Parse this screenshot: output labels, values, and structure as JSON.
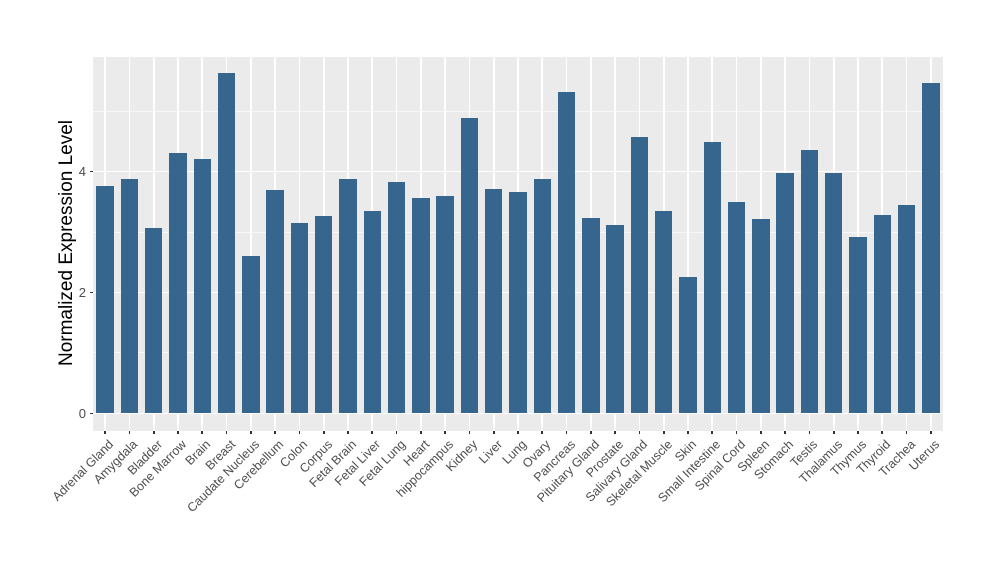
{
  "chart_data": {
    "type": "bar",
    "title": "",
    "xlabel": "",
    "ylabel": "Normalized Expression Level",
    "legend_position": "none",
    "grid": "on",
    "panel_background": "#EBEBEB",
    "gridline_color": "#FFFFFF",
    "bar_color": "#36658D",
    "tick_color": "#333333",
    "tick_label_color": "#4D4D4D",
    "ylim": [
      -0.29,
      5.91
    ],
    "yticks_major": [
      0,
      2,
      4
    ],
    "yticks_minor": [
      1,
      3,
      5
    ],
    "categories": [
      "Adrenal Gland",
      "Amygdala",
      "Bladder",
      "Bone Marrow",
      "Brain",
      "Breast",
      "Caudate Nucleus",
      "Cerebellum",
      "Colon",
      "Corpus",
      "Fetal Brain",
      "Fetal Liver",
      "Fetal Lung",
      "Heart",
      "hippocampus",
      "Kidney",
      "Liver",
      "Lung",
      "Ovary",
      "Pancreas",
      "Pituitary Gland",
      "Prostate",
      "Salivary Gland",
      "Skeletal Muscle",
      "Skin",
      "Small Intestine",
      "Spinal Cord",
      "Spleen",
      "Stomach",
      "Testis",
      "Thalamus",
      "Thymus",
      "Thyroid",
      "Trachea",
      "Uterus"
    ],
    "values": [
      3.77,
      3.87,
      3.07,
      4.31,
      4.21,
      5.63,
      2.61,
      3.69,
      3.15,
      3.26,
      3.88,
      3.35,
      3.82,
      3.57,
      3.6,
      4.88,
      3.71,
      3.66,
      3.87,
      5.31,
      3.24,
      3.11,
      4.57,
      3.34,
      2.26,
      4.49,
      3.5,
      3.22,
      3.98,
      4.36,
      3.98,
      2.92,
      3.29,
      3.44,
      5.47
    ]
  }
}
